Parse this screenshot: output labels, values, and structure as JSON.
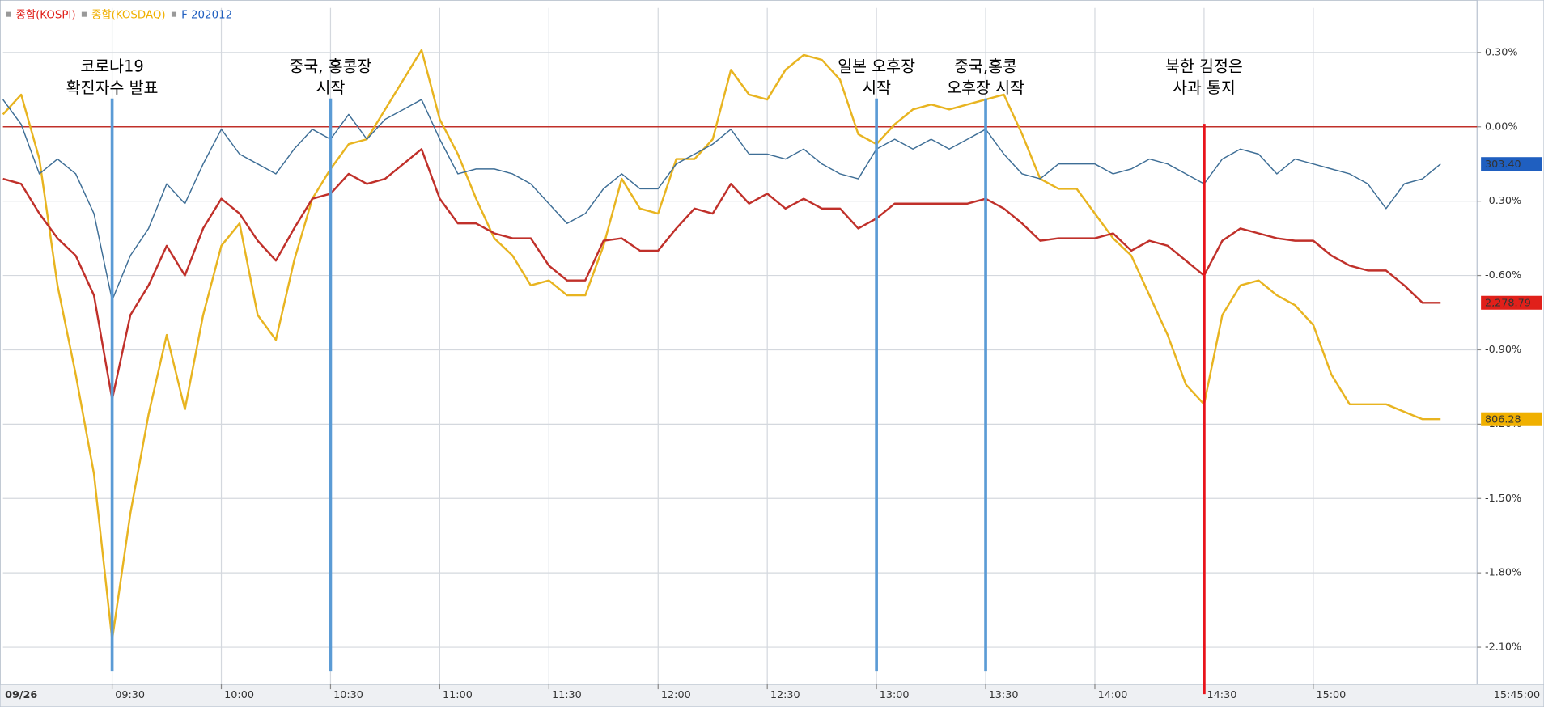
{
  "chart_data": {
    "type": "line",
    "x": [
      "09:00",
      "09:05",
      "09:10",
      "09:15",
      "09:20",
      "09:25",
      "09:30",
      "09:35",
      "09:40",
      "09:45",
      "09:50",
      "09:55",
      "10:00",
      "10:05",
      "10:10",
      "10:15",
      "10:20",
      "10:25",
      "10:30",
      "10:35",
      "10:40",
      "10:45",
      "10:50",
      "10:55",
      "11:00",
      "11:05",
      "11:10",
      "11:15",
      "11:20",
      "11:25",
      "11:30",
      "11:35",
      "11:40",
      "11:45",
      "11:50",
      "11:55",
      "12:00",
      "12:05",
      "12:10",
      "12:15",
      "12:20",
      "12:25",
      "12:30",
      "12:35",
      "12:40",
      "12:45",
      "12:50",
      "12:55",
      "13:00",
      "13:05",
      "13:10",
      "13:15",
      "13:20",
      "13:25",
      "13:30",
      "13:35",
      "13:40",
      "13:45",
      "13:50",
      "13:55",
      "14:00",
      "14:05",
      "14:10",
      "14:15",
      "14:20",
      "14:25",
      "14:30",
      "14:35",
      "14:40",
      "14:45",
      "14:50",
      "14:55",
      "15:00",
      "15:05",
      "15:10",
      "15:15",
      "15:20",
      "15:25",
      "15:30",
      "15:35"
    ],
    "xlim": [
      "09:00",
      "15:45"
    ],
    "xticks": [
      "09:30",
      "10:00",
      "10:30",
      "11:00",
      "11:30",
      "12:00",
      "12:30",
      "13:00",
      "13:30",
      "14:00",
      "14:30",
      "15:00"
    ],
    "x_start_label": "09/26",
    "x_end_label": "15:45:00",
    "ylim": [
      -2.25,
      0.48
    ],
    "yticks": [
      {
        "value": 0.3,
        "label": "0.30%"
      },
      {
        "value": 0,
        "label": "0.00%"
      },
      {
        "value": -0.3,
        "label": "-0.30%"
      },
      {
        "value": -0.6,
        "label": "-0.60%"
      },
      {
        "value": -0.9,
        "label": "-0.90%"
      },
      {
        "value": -1.2,
        "label": "-1.20%"
      },
      {
        "value": -1.5,
        "label": "-1.50%"
      },
      {
        "value": -1.8,
        "label": "-1.80%"
      },
      {
        "value": -2.1,
        "label": "-2.10%"
      }
    ],
    "grid": true,
    "reference_line": {
      "value": 0,
      "color": "#c0302a"
    },
    "series": [
      {
        "name": "종합(KOSPI)",
        "color": "#c0302a",
        "label_color": "#e0201a",
        "last_label": "2,278.79",
        "values": [
          -0.21,
          -0.23,
          -0.35,
          -0.45,
          -0.52,
          -0.68,
          -1.1,
          -0.76,
          -0.64,
          -0.48,
          -0.6,
          -0.41,
          -0.29,
          -0.35,
          -0.46,
          -0.54,
          -0.41,
          -0.29,
          -0.27,
          -0.19,
          -0.23,
          -0.21,
          -0.15,
          -0.09,
          -0.29,
          -0.39,
          -0.39,
          -0.43,
          -0.45,
          -0.45,
          -0.56,
          -0.62,
          -0.62,
          -0.46,
          -0.45,
          -0.5,
          -0.5,
          -0.41,
          -0.33,
          -0.35,
          -0.23,
          -0.31,
          -0.27,
          -0.33,
          -0.29,
          -0.33,
          -0.33,
          -0.41,
          -0.37,
          -0.31,
          -0.31,
          -0.31,
          -0.31,
          -0.31,
          -0.29,
          -0.33,
          -0.39,
          -0.46,
          -0.45,
          -0.45,
          -0.45,
          -0.43,
          -0.5,
          -0.46,
          -0.48,
          -0.54,
          -0.6,
          -0.46,
          -0.41,
          -0.43,
          -0.45,
          -0.46,
          -0.46,
          -0.52,
          -0.56,
          -0.58,
          -0.58,
          -0.64,
          -0.71,
          -0.71
        ]
      },
      {
        "name": "종합(KOSDAQ)",
        "color": "#e8b420",
        "label_color": "#f0b000",
        "last_label": "806.28",
        "values": [
          0.05,
          0.13,
          -0.13,
          -0.64,
          -1.0,
          -1.4,
          -2.07,
          -1.56,
          -1.16,
          -0.84,
          -1.14,
          -0.76,
          -0.48,
          -0.39,
          -0.76,
          -0.86,
          -0.54,
          -0.29,
          -0.17,
          -0.07,
          -0.05,
          0.07,
          0.19,
          0.31,
          0.03,
          -0.11,
          -0.29,
          -0.45,
          -0.52,
          -0.64,
          -0.62,
          -0.68,
          -0.68,
          -0.48,
          -0.21,
          -0.33,
          -0.35,
          -0.13,
          -0.13,
          -0.05,
          0.23,
          0.13,
          0.11,
          0.23,
          0.29,
          0.27,
          0.19,
          -0.03,
          -0.07,
          0.01,
          0.07,
          0.09,
          0.07,
          0.09,
          0.11,
          0.13,
          -0.03,
          -0.21,
          -0.25,
          -0.25,
          -0.35,
          -0.45,
          -0.52,
          -0.68,
          -0.84,
          -1.04,
          -1.12,
          -0.76,
          -0.64,
          -0.62,
          -0.68,
          -0.72,
          -0.8,
          -1.0,
          -1.12,
          -1.12,
          -1.12,
          -1.15,
          -1.18,
          -1.18
        ]
      },
      {
        "name": "F 202012",
        "color": "#3e6e96",
        "label_color": "#1f5fc0",
        "last_label": "303.40",
        "values": [
          0.11,
          0.01,
          -0.19,
          -0.13,
          -0.19,
          -0.35,
          -0.7,
          -0.52,
          -0.41,
          -0.23,
          -0.31,
          -0.15,
          -0.01,
          -0.11,
          -0.15,
          -0.19,
          -0.09,
          -0.01,
          -0.05,
          0.05,
          -0.05,
          0.03,
          0.07,
          0.11,
          -0.05,
          -0.19,
          -0.17,
          -0.17,
          -0.19,
          -0.23,
          -0.31,
          -0.39,
          -0.35,
          -0.25,
          -0.19,
          -0.25,
          -0.25,
          -0.15,
          -0.11,
          -0.07,
          -0.01,
          -0.11,
          -0.11,
          -0.13,
          -0.09,
          -0.15,
          -0.19,
          -0.21,
          -0.09,
          -0.05,
          -0.09,
          -0.05,
          -0.09,
          -0.05,
          -0.01,
          -0.11,
          -0.19,
          -0.21,
          -0.15,
          -0.15,
          -0.15,
          -0.19,
          -0.17,
          -0.13,
          -0.15,
          -0.19,
          -0.23,
          -0.13,
          -0.09,
          -0.11,
          -0.19,
          -0.13,
          -0.15,
          -0.17,
          -0.19,
          -0.23,
          -0.33,
          -0.23,
          -0.21,
          -0.15
        ]
      }
    ],
    "annotations": [
      {
        "x": "09:30",
        "lines": [
          "코로나19",
          "확진자수 발표"
        ],
        "color": "#5b9bd5"
      },
      {
        "x": "10:30",
        "lines": [
          "중국, 홍콩장",
          "시작"
        ],
        "color": "#5b9bd5"
      },
      {
        "x": "13:00",
        "lines": [
          "일본 오후장",
          "시작"
        ],
        "color": "#5b9bd5"
      },
      {
        "x": "13:30",
        "lines": [
          "중국,홍콩",
          "오후장 시작"
        ],
        "color": "#5b9bd5"
      },
      {
        "x": "14:30",
        "lines": [
          "북한 김정은",
          "사과 통지"
        ],
        "color": "#e8141b"
      }
    ]
  }
}
